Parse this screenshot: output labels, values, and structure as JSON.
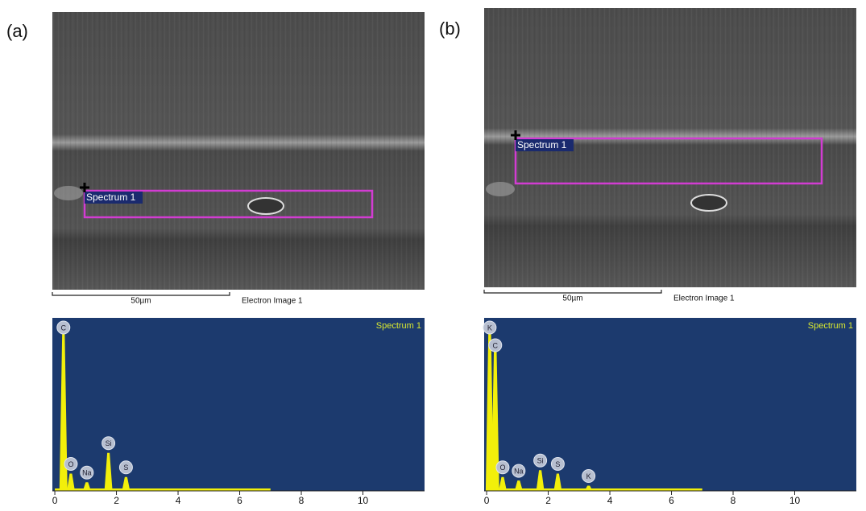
{
  "panels": [
    {
      "label": "(a)",
      "scale_bar": "50µm",
      "image_caption": "Electron Image 1",
      "roi_label": "Spectrum 1"
    },
    {
      "label": "(b)",
      "scale_bar": "50µm",
      "image_caption": "Electron Image 1",
      "roi_label": "Spectrum 1"
    }
  ],
  "chart_data": [
    {
      "type": "spectrum",
      "title": "Spectrum 1",
      "color": "#f2ef0a",
      "background": "#1c3a6e",
      "xlim": [
        -0.08,
        12
      ],
      "xticks": [
        0,
        2,
        4,
        6,
        8,
        10
      ],
      "ylim": [
        0,
        100
      ],
      "peaks": [
        {
          "label": "C",
          "x": 0.28,
          "value": 93
        },
        {
          "label": "O",
          "x": 0.52,
          "value": 10
        },
        {
          "label": "Na",
          "x": 1.04,
          "value": 5
        },
        {
          "label": "Si",
          "x": 1.74,
          "value": 22
        },
        {
          "label": "S",
          "x": 2.31,
          "value": 8
        }
      ]
    },
    {
      "type": "spectrum",
      "title": "Spectrum 1",
      "color": "#f2ef0a",
      "background": "#1c3a6e",
      "xlim": [
        -0.08,
        12
      ],
      "xticks": [
        0,
        2,
        4,
        6,
        8,
        10
      ],
      "ylim": [
        0,
        100
      ],
      "peaks": [
        {
          "label": "K",
          "x": 0.1,
          "value": 97
        },
        {
          "label": "C",
          "x": 0.28,
          "value": 86
        },
        {
          "label": "O",
          "x": 0.52,
          "value": 8
        },
        {
          "label": "Na",
          "x": 1.04,
          "value": 6
        },
        {
          "label": "Si",
          "x": 1.74,
          "value": 12
        },
        {
          "label": "S",
          "x": 2.31,
          "value": 10
        },
        {
          "label": "K",
          "x": 3.31,
          "value": 3
        }
      ]
    }
  ]
}
